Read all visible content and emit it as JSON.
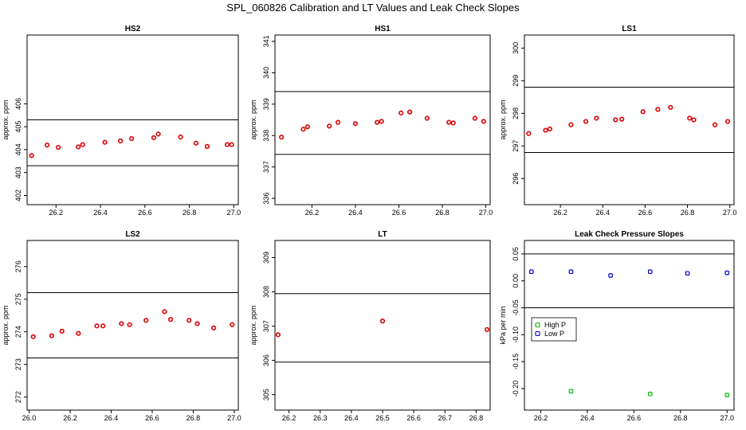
{
  "figure_title": "SPL_060826  Calibration and LT Values and Leak Check Slopes",
  "colors": {
    "points": "#dd0000",
    "high_p": "#00bb00",
    "low_p": "#0000cc",
    "lines": "#000000"
  },
  "chart_data": [
    {
      "type": "scatter",
      "title": "HS2",
      "ylabel": "approx. ppm",
      "xlim": [
        26.07,
        27.02
      ],
      "ylim": [
        401.6,
        409.0
      ],
      "xticks": [
        26.2,
        26.4,
        26.6,
        26.8,
        27.0
      ],
      "xtick_labels": [
        "26.2",
        "26.4",
        "26.6",
        "26.8",
        "27.0"
      ],
      "yticks": [
        402,
        403,
        404,
        405,
        406
      ],
      "ytick_labels": [
        "402",
        "403",
        "404",
        "405",
        "406"
      ],
      "hlines": [
        403.3,
        405.3
      ],
      "series": [
        {
          "name": "values",
          "x": [
            26.09,
            26.16,
            26.21,
            26.3,
            26.32,
            26.42,
            26.49,
            26.54,
            26.64,
            26.66,
            26.76,
            26.83,
            26.88,
            26.97,
            26.99
          ],
          "y": [
            403.74,
            404.2,
            404.1,
            404.12,
            404.22,
            404.32,
            404.38,
            404.48,
            404.52,
            404.68,
            404.55,
            404.28,
            404.14,
            404.22,
            404.22
          ]
        }
      ]
    },
    {
      "type": "scatter",
      "title": "HS1",
      "ylabel": "approx. ppm",
      "xlim": [
        26.03,
        27.02
      ],
      "ylim": [
        335.8,
        341.2
      ],
      "xticks": [
        26.2,
        26.4,
        26.6,
        26.8,
        27.0
      ],
      "xtick_labels": [
        "26.2",
        "26.4",
        "26.6",
        "26.8",
        "27.0"
      ],
      "yticks": [
        336,
        337,
        338,
        339,
        340,
        341
      ],
      "ytick_labels": [
        "336",
        "337",
        "338",
        "339",
        "340",
        "341"
      ],
      "hlines": [
        337.4,
        339.4
      ],
      "series": [
        {
          "name": "values",
          "x": [
            26.06,
            26.16,
            26.18,
            26.28,
            26.32,
            26.4,
            26.5,
            26.52,
            26.61,
            26.65,
            26.73,
            26.83,
            26.85,
            26.95,
            26.99
          ],
          "y": [
            337.95,
            338.2,
            338.28,
            338.3,
            338.42,
            338.38,
            338.42,
            338.45,
            338.72,
            338.75,
            338.55,
            338.42,
            338.4,
            338.55,
            338.45
          ]
        }
      ]
    },
    {
      "type": "scatter",
      "title": "LS1",
      "ylabel": "approx. ppm",
      "xlim": [
        26.03,
        27.02
      ],
      "ylim": [
        295.2,
        300.4
      ],
      "xticks": [
        26.2,
        26.4,
        26.6,
        26.8,
        27.0
      ],
      "xtick_labels": [
        "26.2",
        "26.4",
        "26.6",
        "26.8",
        "27.0"
      ],
      "yticks": [
        296,
        297,
        298,
        299,
        300
      ],
      "ytick_labels": [
        "296",
        "297",
        "298",
        "299",
        "300"
      ],
      "hlines": [
        296.8,
        298.8
      ],
      "series": [
        {
          "name": "values",
          "x": [
            26.05,
            26.13,
            26.15,
            26.25,
            26.32,
            26.37,
            26.46,
            26.49,
            26.59,
            26.66,
            26.72,
            26.81,
            26.83,
            26.93,
            26.99
          ],
          "y": [
            297.38,
            297.48,
            297.52,
            297.65,
            297.75,
            297.85,
            297.8,
            297.82,
            298.05,
            298.12,
            298.18,
            297.85,
            297.8,
            297.65,
            297.75
          ]
        }
      ]
    },
    {
      "type": "scatter",
      "title": "LS2",
      "ylabel": "approx. ppm",
      "xlim": [
        25.99,
        27.02
      ],
      "ylim": [
        271.6,
        276.8
      ],
      "xticks": [
        26.0,
        26.2,
        26.4,
        26.6,
        26.8,
        27.0
      ],
      "xtick_labels": [
        "26.0",
        "26.2",
        "26.4",
        "26.6",
        "26.8",
        "27.0"
      ],
      "yticks": [
        272,
        273,
        274,
        275,
        276
      ],
      "ytick_labels": [
        "272",
        "273",
        "274",
        "275",
        "276"
      ],
      "hlines": [
        273.2,
        275.2
      ],
      "series": [
        {
          "name": "values",
          "x": [
            26.02,
            26.11,
            26.16,
            26.24,
            26.33,
            26.36,
            26.45,
            26.49,
            26.57,
            26.66,
            26.69,
            26.78,
            26.82,
            26.9,
            26.99
          ],
          "y": [
            273.85,
            273.88,
            274.02,
            273.95,
            274.18,
            274.18,
            274.25,
            274.22,
            274.35,
            274.62,
            274.38,
            274.35,
            274.25,
            274.12,
            274.22
          ]
        }
      ]
    },
    {
      "type": "scatter",
      "title": "LT",
      "ylabel": "approx. ppm",
      "xlim": [
        26.155,
        26.845
      ],
      "ylim": [
        304.55,
        309.5
      ],
      "xticks": [
        26.2,
        26.3,
        26.4,
        26.5,
        26.6,
        26.7,
        26.8
      ],
      "xtick_labels": [
        "26.2",
        "26.3",
        "26.4",
        "26.5",
        "26.6",
        "26.7",
        "26.8"
      ],
      "yticks": [
        305,
        306,
        307,
        308,
        309
      ],
      "ytick_labels": [
        "305",
        "306",
        "307",
        "308",
        "309"
      ],
      "hlines": [
        305.95,
        307.95
      ],
      "series": [
        {
          "name": "values",
          "x": [
            26.165,
            26.5,
            26.835
          ],
          "y": [
            306.75,
            307.15,
            306.9
          ]
        }
      ]
    },
    {
      "type": "scatter",
      "title": "Leak Check Pressure Slopes",
      "ylabel": "kPa per min",
      "xlim": [
        26.13,
        27.03
      ],
      "ylim": [
        -0.24,
        0.075
      ],
      "xticks": [
        26.2,
        26.4,
        26.6,
        26.8,
        27.0
      ],
      "xtick_labels": [
        "26.2",
        "26.4",
        "26.6",
        "26.8",
        "27.0"
      ],
      "yticks": [
        0.05,
        0.0,
        -0.05,
        -0.1,
        -0.15,
        -0.2
      ],
      "ytick_labels": [
        "0.05",
        "0.00",
        "-0.05",
        "-0.10",
        "-0.15",
        "-0.20"
      ],
      "hlines": [
        0.05,
        -0.05
      ],
      "legend": {
        "position": "left",
        "entries": [
          "High P",
          "Low P"
        ]
      },
      "series": [
        {
          "name": "High P",
          "x": [
            26.33,
            26.67,
            27.0
          ],
          "y": [
            -0.205,
            -0.21,
            -0.212
          ]
        },
        {
          "name": "Low P",
          "x": [
            26.16,
            26.33,
            26.5,
            26.67,
            26.83,
            27.0
          ],
          "y": [
            0.017,
            0.017,
            0.01,
            0.017,
            0.014,
            0.015
          ]
        }
      ]
    }
  ]
}
